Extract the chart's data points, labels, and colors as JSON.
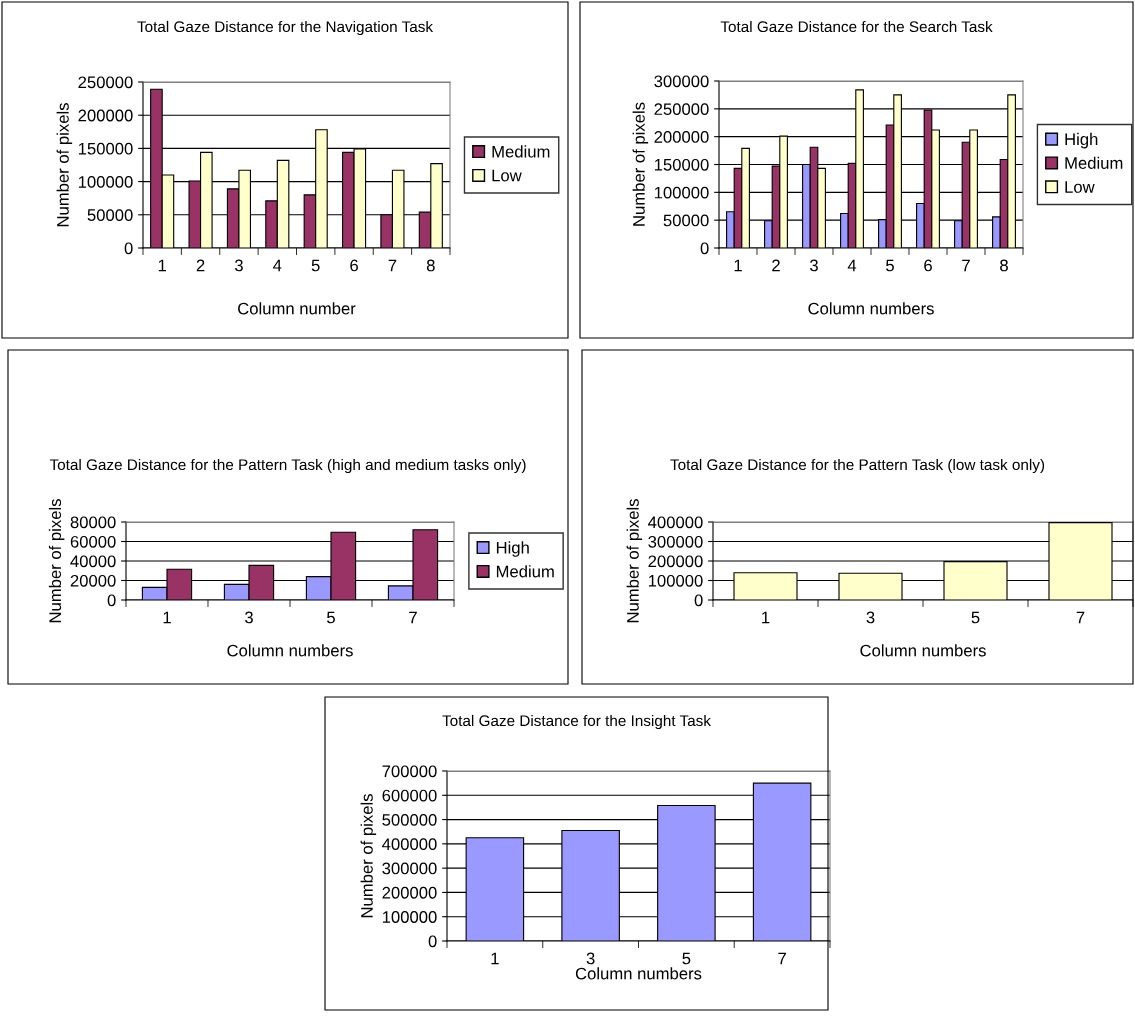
{
  "chart_data": [
    {
      "type": "bar",
      "title": "Total Gaze Distance for the Navigation Task",
      "xlabel": "Column number",
      "ylabel": "Number of pixels",
      "categories": [
        "1",
        "2",
        "3",
        "4",
        "5",
        "6",
        "7",
        "8"
      ],
      "series": [
        {
          "name": "Medium",
          "color": "#993366",
          "values": [
            239000,
            101000,
            89000,
            71000,
            80000,
            144000,
            50000,
            54000
          ]
        },
        {
          "name": "Low",
          "color": "#ffffcc",
          "values": [
            110000,
            144000,
            117000,
            132000,
            178000,
            149000,
            117000,
            127000
          ]
        }
      ],
      "ylim": [
        0,
        250000
      ],
      "yticks": [
        0,
        50000,
        100000,
        150000,
        200000,
        250000
      ],
      "grid": "y",
      "legend": "right"
    },
    {
      "type": "bar",
      "title": "Total Gaze Distance for the Search Task",
      "xlabel": "Column numbers",
      "ylabel": "Number of pixels",
      "categories": [
        "1",
        "2",
        "3",
        "4",
        "5",
        "6",
        "7",
        "8"
      ],
      "series": [
        {
          "name": "High",
          "color": "#9999ff",
          "values": [
            65000,
            49000,
            150000,
            62000,
            51000,
            80000,
            49000,
            56000
          ]
        },
        {
          "name": "Medium",
          "color": "#993366",
          "values": [
            143000,
            147000,
            181000,
            152000,
            221000,
            248000,
            190000,
            159000
          ]
        },
        {
          "name": "Low",
          "color": "#ffffcc",
          "values": [
            179000,
            201000,
            143000,
            284000,
            275000,
            212000,
            212000,
            275000
          ]
        }
      ],
      "ylim": [
        0,
        300000
      ],
      "yticks": [
        0,
        50000,
        100000,
        150000,
        200000,
        250000,
        300000
      ],
      "grid": "y",
      "legend": "right"
    },
    {
      "type": "bar",
      "title": "Total Gaze Distance for the Pattern Task (high and medium tasks only)",
      "xlabel": "Column numbers",
      "ylabel": "Number of pixels",
      "categories": [
        "1",
        "3",
        "5",
        "7"
      ],
      "series": [
        {
          "name": "High",
          "color": "#9999ff",
          "values": [
            13000,
            16000,
            24000,
            14500
          ]
        },
        {
          "name": "Medium",
          "color": "#993366",
          "values": [
            31500,
            35500,
            69500,
            72000
          ]
        }
      ],
      "ylim": [
        0,
        80000
      ],
      "yticks": [
        0,
        20000,
        40000,
        60000,
        80000
      ],
      "grid": "y",
      "legend": "right"
    },
    {
      "type": "bar",
      "title": "Total Gaze Distance for the Pattern Task (low task only)",
      "xlabel": "Column numbers",
      "ylabel": "Number of pixels",
      "categories": [
        "1",
        "3",
        "5",
        "7"
      ],
      "series": [
        {
          "color": "#ffffcc",
          "values": [
            140000,
            137000,
            197000,
            397000
          ]
        }
      ],
      "ylim": [
        0,
        400000
      ],
      "yticks": [
        0,
        100000,
        200000,
        300000,
        400000
      ],
      "grid": "y"
    },
    {
      "type": "bar",
      "title": "Total Gaze Distance for the Insight Task",
      "xlabel": "Column numbers",
      "ylabel": "Number of pixels",
      "categories": [
        "1",
        "3",
        "5",
        "7"
      ],
      "series": [
        {
          "color": "#9999ff",
          "values": [
            425000,
            455000,
            558000,
            650000
          ]
        }
      ],
      "ylim": [
        0,
        700000
      ],
      "yticks": [
        0,
        100000,
        200000,
        300000,
        400000,
        500000,
        600000,
        700000
      ],
      "grid": "y"
    }
  ]
}
